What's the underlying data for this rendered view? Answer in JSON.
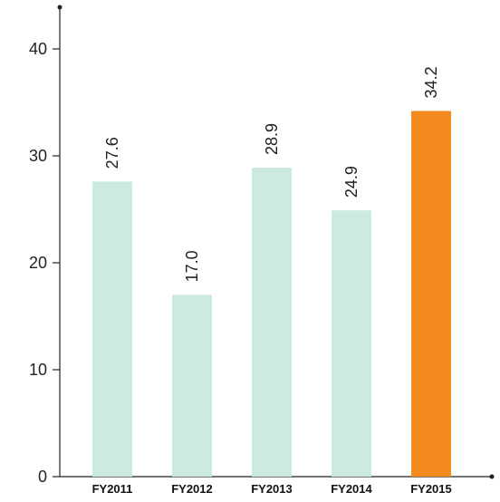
{
  "chart_data": {
    "type": "bar",
    "categories": [
      "FY2011",
      "FY2012",
      "FY2013",
      "FY2014",
      "FY2015"
    ],
    "values": [
      27.6,
      17.0,
      28.9,
      24.9,
      34.2
    ],
    "value_labels": [
      "27.6",
      "17.0",
      "28.9",
      "24.9",
      "34.2"
    ],
    "yticks": [
      "0",
      "10",
      "20",
      "30",
      "40"
    ],
    "ylim": [
      0,
      44
    ],
    "bar_colors": [
      "#cdeae0",
      "#cdeae0",
      "#cdeae0",
      "#cdeae0",
      "#f28a1e"
    ],
    "axis_color": "#222222",
    "grid": false
  }
}
